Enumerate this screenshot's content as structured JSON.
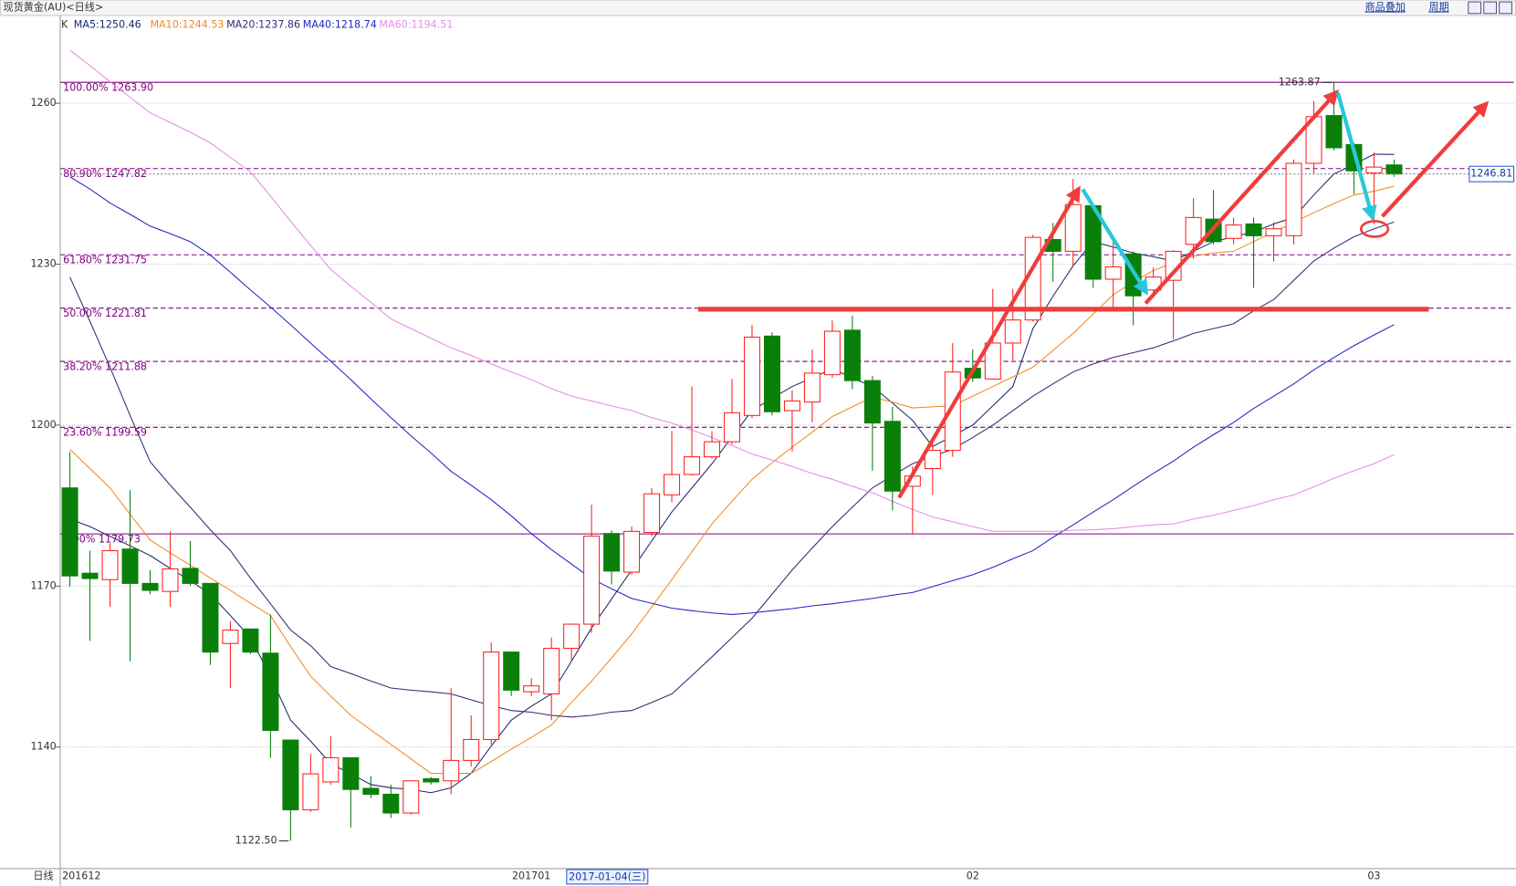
{
  "chart_data": {
    "type": "candlestick",
    "title": "现货黄金(AU)<日线>",
    "toolbar": [
      "商品叠加",
      "周期"
    ],
    "period_label": "日线",
    "legend_prefix": "K",
    "cursor_label": "2017-01-04(三)",
    "high_label": "1263.87",
    "low_label": "1122.50",
    "last_price": 1246.81,
    "categories": [
      "201612",
      null,
      null,
      null,
      null,
      null,
      null,
      null,
      null,
      null,
      null,
      null,
      null,
      null,
      null,
      null,
      null,
      null,
      null,
      null,
      null,
      null,
      null,
      "201701",
      null,
      null,
      null,
      null,
      null,
      null,
      null,
      null,
      null,
      null,
      null,
      null,
      null,
      null,
      null,
      null,
      null,
      null,
      null,
      null,
      null,
      "02",
      null,
      null,
      null,
      null,
      null,
      null,
      null,
      null,
      null,
      null,
      null,
      null,
      null,
      null,
      null,
      null,
      null,
      null,
      null,
      "03",
      null
    ],
    "open": [
      1188.3,
      1172.4,
      1171.2,
      1176.9,
      1170.5,
      1169.0,
      1173.3,
      1170.5,
      1159.3,
      1162.0,
      1157.5,
      1141.3,
      1128.3,
      1133.5,
      1138.0,
      1132.3,
      1131.2,
      1127.7,
      1134.1,
      1133.7,
      1137.5,
      1141.4,
      1157.7,
      1150.3,
      1149.9,
      1158.4,
      1162.9,
      1179.8,
      1172.6,
      1180.0,
      1187.0,
      1190.8,
      1194.1,
      1196.9,
      1201.8,
      1216.6,
      1202.7,
      1204.3,
      1209.4,
      1217.7,
      1208.3,
      1200.7,
      1188.6,
      1191.9,
      1195.3,
      1210.6,
      1208.6,
      1215.3,
      1219.6,
      1234.6,
      1232.4,
      1240.9,
      1227.2,
      1231.9,
      1225.2,
      1227.0,
      1233.7,
      1238.4,
      1234.8,
      1237.5,
      1235.3,
      1235.3,
      1248.8,
      1257.7,
      1252.3,
      1247.0,
      1248.5
    ],
    "high": [
      1195.0,
      1176.6,
      1178.0,
      1187.9,
      1173.0,
      1180.2,
      1178.4,
      1170.5,
      1163.4,
      1162.0,
      1164.7,
      1141.3,
      1138.7,
      1142.0,
      1138.0,
      1134.6,
      1133.0,
      1133.7,
      1134.4,
      1151.0,
      1145.9,
      1159.5,
      1157.7,
      1152.8,
      1160.4,
      1162.9,
      1185.2,
      1180.4,
      1181.1,
      1188.3,
      1198.9,
      1207.2,
      1198.9,
      1208.6,
      1218.7,
      1217.3,
      1206.5,
      1214.1,
      1219.5,
      1220.4,
      1209.2,
      1203.4,
      1192.3,
      1197.3,
      1215.3,
      1214.1,
      1225.4,
      1225.4,
      1235.5,
      1237.7,
      1245.9,
      1240.9,
      1234.8,
      1232.4,
      1229.4,
      1232.6,
      1242.3,
      1243.8,
      1238.7,
      1238.7,
      1237.8,
      1249.5,
      1260.4,
      1263.87,
      1252.6,
      1250.8,
      1249.5
    ],
    "low": [
      1169.9,
      1159.8,
      1166.1,
      1156.0,
      1168.5,
      1166.1,
      1170.1,
      1155.3,
      1151.0,
      1157.3,
      1138.0,
      1122.5,
      1127.9,
      1133.0,
      1125.0,
      1130.5,
      1126.8,
      1127.4,
      1133.0,
      1131.2,
      1136.4,
      1140.5,
      1149.5,
      1149.5,
      1145.0,
      1155.9,
      1161.3,
      1170.3,
      1172.1,
      1179.3,
      1185.6,
      1190.6,
      1193.7,
      1196.4,
      1201.3,
      1201.8,
      1195.1,
      1200.5,
      1208.8,
      1206.7,
      1191.5,
      1184.1,
      1179.8,
      1187.0,
      1194.1,
      1208.1,
      1208.5,
      1212.1,
      1219.3,
      1226.7,
      1229.7,
      1225.6,
      1221.3,
      1218.6,
      1224.5,
      1216.0,
      1231.0,
      1233.7,
      1233.7,
      1225.6,
      1230.5,
      1233.7,
      1246.8,
      1251.2,
      1243.1,
      1237.5,
      1246.3
    ],
    "close": [
      1171.9,
      1171.4,
      1176.6,
      1170.5,
      1169.2,
      1173.2,
      1170.5,
      1157.7,
      1161.8,
      1157.7,
      1143.1,
      1128.3,
      1135.0,
      1138.0,
      1132.1,
      1131.2,
      1127.7,
      1133.7,
      1133.5,
      1137.5,
      1141.4,
      1157.7,
      1150.6,
      1151.4,
      1158.4,
      1162.9,
      1179.3,
      1172.8,
      1180.2,
      1187.2,
      1190.8,
      1194.1,
      1196.9,
      1202.3,
      1216.4,
      1202.5,
      1204.5,
      1209.7,
      1217.5,
      1208.3,
      1200.4,
      1187.7,
      1190.5,
      1195.3,
      1209.9,
      1208.8,
      1215.3,
      1219.6,
      1235.0,
      1232.4,
      1241.1,
      1227.2,
      1229.5,
      1224.1,
      1227.6,
      1232.4,
      1238.7,
      1234.2,
      1237.3,
      1235.3,
      1236.6,
      1248.8,
      1257.5,
      1251.7,
      1247.4,
      1248.1,
      1246.81
    ],
    "up_color": "#ff2020",
    "down_color": "#0a800a",
    "series": [
      {
        "name": "MA5:1250.46",
        "color": "#1c2a6e",
        "values": [
          1182.5,
          1181.1,
          1179.3,
          1177.5,
          1175.7,
          1173.3,
          1171.0,
          1168.5,
          1164.5,
          1160.4,
          1153.2,
          1145.0,
          1141.1,
          1136.9,
          1135.0,
          1133.0,
          1132.4,
          1132.1,
          1131.5,
          1132.4,
          1135.1,
          1140.2,
          1145.0,
          1147.6,
          1149.9,
          1156.0,
          1162.2,
          1167.6,
          1173.0,
          1178.4,
          1183.8,
          1188.3,
          1192.8,
          1197.8,
          1202.7,
          1205.0,
          1207.2,
          1208.8,
          1210.5,
          1208.8,
          1207.2,
          1204.1,
          1200.9,
          1196.0,
          1198.0,
          1200.0,
          1203.6,
          1207.2,
          1218.0,
          1224.0,
          1229.7,
          1234.2,
          1233.2,
          1232.1,
          1231.4,
          1230.6,
          1232.4,
          1234.2,
          1235.1,
          1236.0,
          1237.5,
          1238.7,
          1242.9,
          1246.8,
          1248.6,
          1250.5,
          1250.46
        ]
      },
      {
        "name": "MA10:1244.53",
        "color": "#f08c28",
        "values": [
          1195.5,
          1191.9,
          1188.3,
          1183.4,
          1178.6,
          1176.2,
          1173.9,
          1171.5,
          1169.2,
          1166.8,
          1164.5,
          1158.7,
          1153.2,
          1149.5,
          1145.9,
          1143.2,
          1140.5,
          1137.8,
          1135.1,
          1135.1,
          1135.1,
          1137.3,
          1139.6,
          1141.8,
          1144.1,
          1148.3,
          1152.3,
          1156.6,
          1161.1,
          1166.1,
          1171.2,
          1176.4,
          1181.6,
          1185.8,
          1189.9,
          1193.0,
          1195.9,
          1198.7,
          1201.6,
          1203.4,
          1205.2,
          1204.3,
          1203.2,
          1203.4,
          1203.6,
          1205.4,
          1207.2,
          1209.0,
          1210.8,
          1213.9,
          1217.1,
          1220.7,
          1224.3,
          1226.7,
          1228.8,
          1230.3,
          1231.5,
          1232.1,
          1232.4,
          1234.2,
          1236.0,
          1237.8,
          1239.6,
          1241.3,
          1242.9,
          1243.6,
          1244.53
        ]
      },
      {
        "name": "MA20:1237.86",
        "color": "#3c2878",
        "values": [
          1227.6,
          1219.3,
          1210.8,
          1201.8,
          1193.2,
          1188.8,
          1184.7,
          1180.5,
          1176.6,
          1171.5,
          1166.7,
          1161.8,
          1158.9,
          1155.0,
          1153.7,
          1152.3,
          1151.0,
          1150.6,
          1150.3,
          1149.9,
          1148.8,
          1147.7,
          1146.8,
          1146.5,
          1145.9,
          1145.6,
          1145.9,
          1146.5,
          1146.8,
          1148.3,
          1149.9,
          1153.3,
          1156.8,
          1160.4,
          1164.0,
          1168.5,
          1173.0,
          1177.1,
          1181.1,
          1184.7,
          1188.3,
          1190.6,
          1192.8,
          1194.2,
          1195.5,
          1197.7,
          1200.0,
          1202.7,
          1205.4,
          1207.7,
          1209.9,
          1211.4,
          1212.6,
          1213.5,
          1214.4,
          1215.7,
          1217.1,
          1218.0,
          1218.9,
          1221.3,
          1223.4,
          1227.0,
          1230.6,
          1233.0,
          1235.1,
          1236.6,
          1237.86
        ]
      },
      {
        "name": "MA40:1218.74",
        "color": "#2424c8",
        "values": [
          1246.3,
          1244.0,
          1241.4,
          1239.3,
          1237.1,
          1235.7,
          1234.2,
          1231.7,
          1228.5,
          1225.2,
          1222.0,
          1218.7,
          1215.3,
          1211.9,
          1208.5,
          1204.9,
          1201.4,
          1198.0,
          1194.8,
          1191.4,
          1188.8,
          1186.1,
          1183.1,
          1179.8,
          1176.8,
          1174.1,
          1171.4,
          1169.5,
          1167.7,
          1166.8,
          1165.9,
          1165.4,
          1165.0,
          1164.7,
          1165.0,
          1165.4,
          1165.8,
          1166.3,
          1166.7,
          1167.2,
          1167.7,
          1168.3,
          1168.8,
          1169.9,
          1171.0,
          1172.1,
          1173.5,
          1175.1,
          1176.6,
          1179.1,
          1181.4,
          1183.8,
          1186.1,
          1188.6,
          1191.0,
          1193.3,
          1195.9,
          1198.2,
          1200.5,
          1203.1,
          1205.4,
          1207.7,
          1210.3,
          1212.6,
          1214.8,
          1216.8,
          1218.74
        ]
      },
      {
        "name": "MA60:1194.51",
        "color": "#e68ce6",
        "values": [
          1269.9,
          1267.0,
          1264.0,
          1261.1,
          1258.2,
          1256.4,
          1254.6,
          1252.6,
          1249.9,
          1247.2,
          1242.7,
          1238.0,
          1233.5,
          1229.0,
          1225.9,
          1222.9,
          1219.8,
          1218.0,
          1216.2,
          1214.4,
          1213.0,
          1211.4,
          1209.9,
          1208.5,
          1206.8,
          1205.4,
          1204.5,
          1203.6,
          1202.7,
          1201.4,
          1200.4,
          1199.1,
          1197.7,
          1196.2,
          1194.6,
          1193.5,
          1192.3,
          1191.0,
          1189.9,
          1188.6,
          1187.4,
          1185.8,
          1184.3,
          1182.9,
          1182.0,
          1181.1,
          1180.2,
          1180.2,
          1180.2,
          1180.2,
          1180.4,
          1180.5,
          1180.7,
          1181.1,
          1181.4,
          1181.6,
          1182.5,
          1183.2,
          1184.1,
          1185.0,
          1186.1,
          1187.0,
          1188.5,
          1190.1,
          1191.5,
          1192.8,
          1194.51
        ]
      }
    ],
    "fib_levels": [
      {
        "value": 1263.9,
        "label": "100.00% 1263.90",
        "style": "solid"
      },
      {
        "value": 1247.82,
        "label": "80.90% 1247.82",
        "style": "dashed"
      },
      {
        "value": 1231.75,
        "label": "61.80% 1231.75",
        "style": "dashed"
      },
      {
        "value": 1221.81,
        "label": "50.00% 1221.81",
        "style": "dashed"
      },
      {
        "value": 1211.88,
        "label": "38.20% 1211.88",
        "style": "dashed"
      },
      {
        "value": 1199.59,
        "label": "23.60% 1199.59",
        "style": "dashed"
      },
      {
        "value": 1179.73,
        "label": "0.00% 1179.73",
        "style": "solid"
      }
    ],
    "fib_color": "#800080",
    "ylim": [
      1117.7,
      1276
    ],
    "yticks": [
      1140,
      1170,
      1200,
      1230,
      1260
    ],
    "grid": true
  }
}
